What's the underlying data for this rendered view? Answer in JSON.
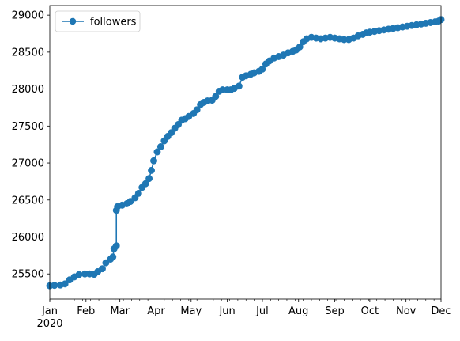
{
  "chart_data": {
    "type": "line",
    "marker": "circle",
    "title": "",
    "xlabel": "",
    "ylabel": "",
    "legend": {
      "placement": "upper-left"
    },
    "grid": false,
    "xlim": [
      "2020-01-01",
      "2020-12-01"
    ],
    "ylim": [
      25160,
      29130
    ],
    "x_ticks": [
      "Jan",
      "Feb",
      "Mar",
      "Apr",
      "May",
      "Jun",
      "Jul",
      "Aug",
      "Sep",
      "Oct",
      "Nov",
      "Dec"
    ],
    "x_tick_dates": [
      "2020-01-01",
      "2020-02-01",
      "2020-03-01",
      "2020-04-01",
      "2020-05-01",
      "2020-06-01",
      "2020-07-01",
      "2020-08-01",
      "2020-09-01",
      "2020-10-01",
      "2020-11-01",
      "2020-12-01"
    ],
    "x_year_label": "2020",
    "y_ticks": [
      25500,
      26000,
      26500,
      27000,
      27500,
      28000,
      28500,
      29000
    ],
    "series": [
      {
        "name": "followers",
        "color": "#1f77b4",
        "points": [
          [
            "2020-01-01",
            25340
          ],
          [
            "2020-01-05",
            25345
          ],
          [
            "2020-01-10",
            25350
          ],
          [
            "2020-01-14",
            25365
          ],
          [
            "2020-01-18",
            25420
          ],
          [
            "2020-01-22",
            25460
          ],
          [
            "2020-01-26",
            25490
          ],
          [
            "2020-01-31",
            25500
          ],
          [
            "2020-02-04",
            25500
          ],
          [
            "2020-02-08",
            25495
          ],
          [
            "2020-02-11",
            25530
          ],
          [
            "2020-02-15",
            25570
          ],
          [
            "2020-02-18",
            25650
          ],
          [
            "2020-02-22",
            25700
          ],
          [
            "2020-02-24",
            25730
          ],
          [
            "2020-02-25",
            25840
          ],
          [
            "2020-02-27",
            25880
          ],
          [
            "2020-02-27",
            26360
          ],
          [
            "2020-02-28",
            26410
          ],
          [
            "2020-03-03",
            26430
          ],
          [
            "2020-03-07",
            26450
          ],
          [
            "2020-03-10",
            26480
          ],
          [
            "2020-03-14",
            26530
          ],
          [
            "2020-03-17",
            26590
          ],
          [
            "2020-03-20",
            26670
          ],
          [
            "2020-03-23",
            26720
          ],
          [
            "2020-03-26",
            26790
          ],
          [
            "2020-03-28",
            26900
          ],
          [
            "2020-03-30",
            27030
          ],
          [
            "2020-04-02",
            27150
          ],
          [
            "2020-04-05",
            27220
          ],
          [
            "2020-04-08",
            27300
          ],
          [
            "2020-04-11",
            27360
          ],
          [
            "2020-04-14",
            27410
          ],
          [
            "2020-04-17",
            27470
          ],
          [
            "2020-04-20",
            27520
          ],
          [
            "2020-04-23",
            27580
          ],
          [
            "2020-04-26",
            27600
          ],
          [
            "2020-04-29",
            27630
          ],
          [
            "2020-05-03",
            27670
          ],
          [
            "2020-05-06",
            27720
          ],
          [
            "2020-05-09",
            27790
          ],
          [
            "2020-05-12",
            27820
          ],
          [
            "2020-05-15",
            27840
          ],
          [
            "2020-05-19",
            27850
          ],
          [
            "2020-05-22",
            27900
          ],
          [
            "2020-05-25",
            27970
          ],
          [
            "2020-05-28",
            27990
          ],
          [
            "2020-06-01",
            27990
          ],
          [
            "2020-06-04",
            27990
          ],
          [
            "2020-06-07",
            28010
          ],
          [
            "2020-06-11",
            28040
          ],
          [
            "2020-06-14",
            28160
          ],
          [
            "2020-06-17",
            28180
          ],
          [
            "2020-06-21",
            28200
          ],
          [
            "2020-06-24",
            28220
          ],
          [
            "2020-06-28",
            28240
          ],
          [
            "2020-07-01",
            28270
          ],
          [
            "2020-07-04",
            28340
          ],
          [
            "2020-07-07",
            28380
          ],
          [
            "2020-07-11",
            28420
          ],
          [
            "2020-07-15",
            28440
          ],
          [
            "2020-07-19",
            28460
          ],
          [
            "2020-07-23",
            28490
          ],
          [
            "2020-07-27",
            28510
          ],
          [
            "2020-07-30",
            28530
          ],
          [
            "2020-08-02",
            28570
          ],
          [
            "2020-08-05",
            28640
          ],
          [
            "2020-08-08",
            28680
          ],
          [
            "2020-08-12",
            28700
          ],
          [
            "2020-08-16",
            28690
          ],
          [
            "2020-08-20",
            28680
          ],
          [
            "2020-08-24",
            28690
          ],
          [
            "2020-08-28",
            28700
          ],
          [
            "2020-09-01",
            28690
          ],
          [
            "2020-09-05",
            28680
          ],
          [
            "2020-09-09",
            28670
          ],
          [
            "2020-09-13",
            28670
          ],
          [
            "2020-09-17",
            28690
          ],
          [
            "2020-09-21",
            28720
          ],
          [
            "2020-09-25",
            28740
          ],
          [
            "2020-09-28",
            28760
          ],
          [
            "2020-10-01",
            28770
          ],
          [
            "2020-10-05",
            28780
          ],
          [
            "2020-10-09",
            28790
          ],
          [
            "2020-10-13",
            28800
          ],
          [
            "2020-10-17",
            28810
          ],
          [
            "2020-10-21",
            28820
          ],
          [
            "2020-10-25",
            28830
          ],
          [
            "2020-10-29",
            28840
          ],
          [
            "2020-11-02",
            28850
          ],
          [
            "2020-11-06",
            28860
          ],
          [
            "2020-11-10",
            28870
          ],
          [
            "2020-11-14",
            28880
          ],
          [
            "2020-11-18",
            28890
          ],
          [
            "2020-11-22",
            28900
          ],
          [
            "2020-11-26",
            28910
          ],
          [
            "2020-11-29",
            28920
          ],
          [
            "2020-12-01",
            28940
          ]
        ]
      }
    ]
  }
}
